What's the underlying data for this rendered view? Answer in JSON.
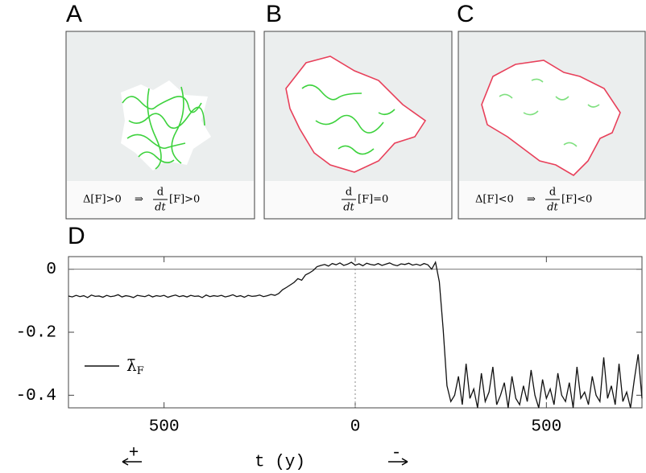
{
  "panels": [
    {
      "letter": "A",
      "caption": {
        "premise": "Δ[F]>0",
        "implies": "⇒",
        "num": "d",
        "den": "dt",
        "rest": "[F]>0"
      }
    },
    {
      "letter": "B",
      "caption": {
        "num": "d",
        "den": "dt",
        "rest": "[F]=0"
      }
    },
    {
      "letter": "C",
      "caption": {
        "premise": "Δ[F]<0",
        "implies": "⇒",
        "num": "d",
        "den": "dt",
        "rest": "[F]<0"
      }
    }
  ],
  "chart_data": {
    "type": "line",
    "letter": "D",
    "xlabel": {
      "plus": "+",
      "text": "t (y)",
      "minus": "-"
    },
    "xlim": [
      -750,
      750
    ],
    "ylim": [
      -0.44,
      0.04
    ],
    "xticks": [
      {
        "value": -500,
        "label": "500"
      },
      0,
      500
    ],
    "yticks": [
      0,
      -0.2,
      -0.4
    ],
    "legend": "lower left",
    "x": [
      -750,
      -740,
      -730,
      -720,
      -710,
      -700,
      -690,
      -680,
      -670,
      -660,
      -650,
      -640,
      -630,
      -620,
      -610,
      -600,
      -590,
      -580,
      -570,
      -560,
      -550,
      -540,
      -530,
      -520,
      -510,
      -500,
      -490,
      -480,
      -470,
      -460,
      -450,
      -440,
      -430,
      -420,
      -410,
      -400,
      -390,
      -380,
      -370,
      -360,
      -350,
      -340,
      -330,
      -320,
      -310,
      -300,
      -290,
      -280,
      -270,
      -260,
      -250,
      -240,
      -230,
      -220,
      -210,
      -200,
      -190,
      -180,
      -170,
      -160,
      -150,
      -140,
      -130,
      -120,
      -110,
      -100,
      -90,
      -80,
      -70,
      -60,
      -50,
      -40,
      -30,
      -20,
      -10,
      0,
      10,
      20,
      30,
      40,
      50,
      60,
      70,
      80,
      90,
      100,
      110,
      120,
      130,
      140,
      150,
      160,
      170,
      180,
      190,
      200,
      210,
      220,
      230,
      240,
      250,
      260,
      270,
      280,
      290,
      300,
      310,
      320,
      330,
      340,
      350,
      360,
      370,
      380,
      390,
      400,
      410,
      420,
      430,
      440,
      450,
      460,
      470,
      480,
      490,
      500,
      510,
      520,
      530,
      540,
      550,
      560,
      570,
      580,
      590,
      600,
      610,
      620,
      630,
      640,
      650,
      660,
      670,
      680,
      690,
      700,
      710,
      720,
      730,
      740,
      750
    ],
    "series": [
      {
        "name": "λ̄",
        "name_sub": "F",
        "color": "#111111",
        "values": [
          -0.085,
          -0.088,
          -0.083,
          -0.087,
          -0.084,
          -0.09,
          -0.082,
          -0.086,
          -0.085,
          -0.089,
          -0.083,
          -0.087,
          -0.085,
          -0.081,
          -0.088,
          -0.084,
          -0.086,
          -0.09,
          -0.083,
          -0.085,
          -0.087,
          -0.082,
          -0.088,
          -0.084,
          -0.086,
          -0.083,
          -0.089,
          -0.085,
          -0.082,
          -0.087,
          -0.084,
          -0.088,
          -0.083,
          -0.086,
          -0.085,
          -0.09,
          -0.082,
          -0.087,
          -0.084,
          -0.086,
          -0.083,
          -0.088,
          -0.085,
          -0.081,
          -0.087,
          -0.084,
          -0.089,
          -0.083,
          -0.086,
          -0.085,
          -0.082,
          -0.087,
          -0.084,
          -0.08,
          -0.083,
          -0.077,
          -0.065,
          -0.058,
          -0.05,
          -0.042,
          -0.03,
          -0.035,
          -0.018,
          -0.012,
          -0.004,
          0.008,
          0.012,
          0.015,
          0.01,
          0.018,
          0.014,
          0.02,
          0.012,
          0.016,
          0.022,
          0.013,
          0.017,
          0.011,
          0.019,
          0.015,
          0.013,
          0.018,
          0.012,
          0.016,
          0.02,
          0.014,
          0.011,
          0.017,
          0.015,
          0.019,
          0.013,
          0.016,
          0.012,
          0.018,
          0.014,
          0.0,
          0.022,
          -0.04,
          -0.19,
          -0.37,
          -0.42,
          -0.4,
          -0.34,
          -0.43,
          -0.3,
          -0.41,
          -0.38,
          -0.44,
          -0.33,
          -0.42,
          -0.39,
          -0.31,
          -0.43,
          -0.4,
          -0.36,
          -0.44,
          -0.34,
          -0.41,
          -0.43,
          -0.37,
          -0.42,
          -0.32,
          -0.4,
          -0.44,
          -0.35,
          -0.41,
          -0.38,
          -0.43,
          -0.33,
          -0.4,
          -0.42,
          -0.36,
          -0.44,
          -0.31,
          -0.41,
          -0.39,
          -0.43,
          -0.34,
          -0.4,
          -0.42,
          -0.28,
          -0.41,
          -0.37,
          -0.43,
          -0.3,
          -0.42,
          -0.39,
          -0.44,
          -0.35,
          -0.27,
          -0.41
        ]
      }
    ]
  }
}
